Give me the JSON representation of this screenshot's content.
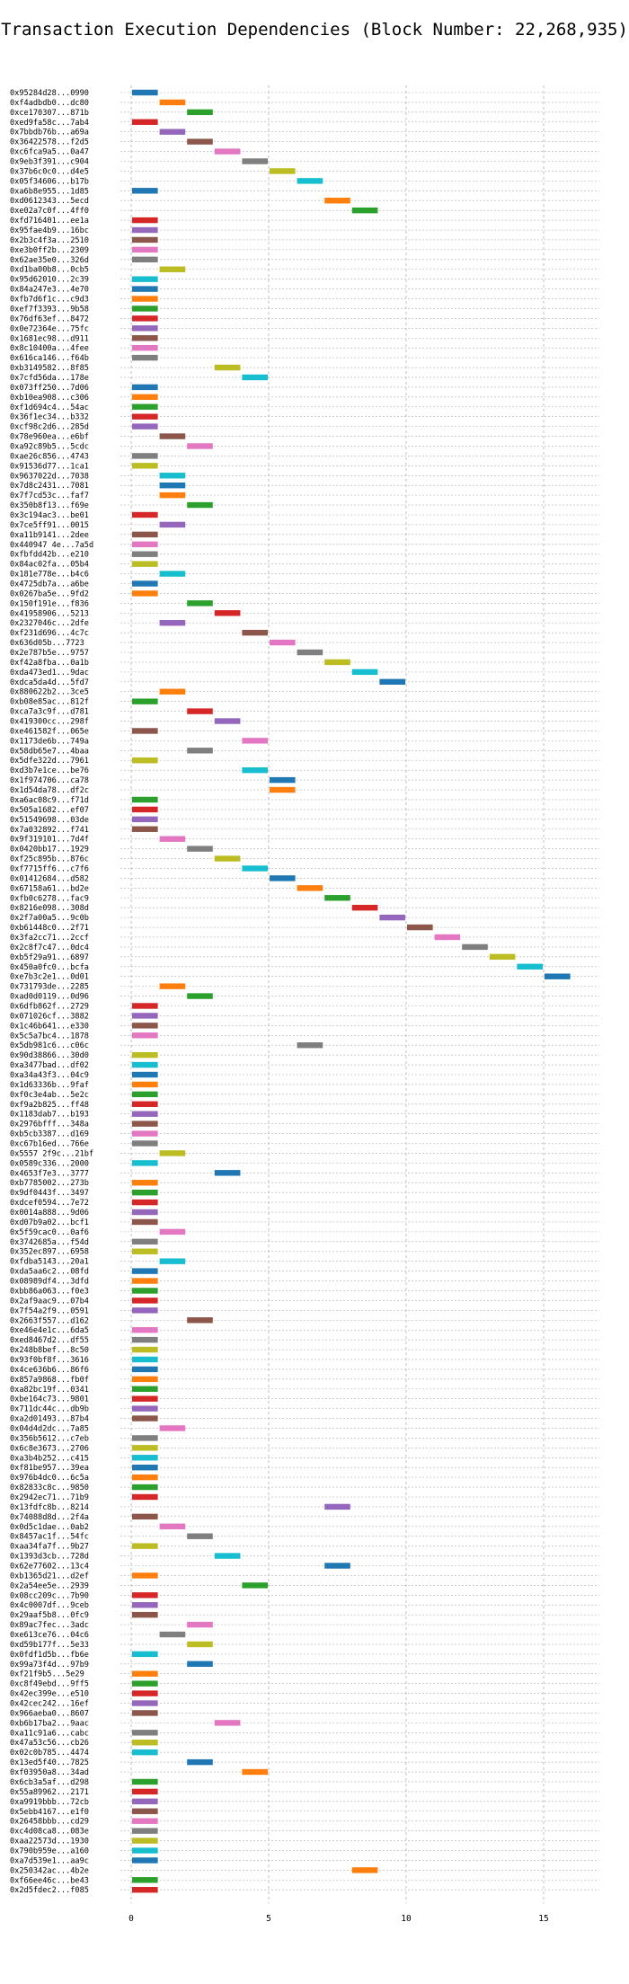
{
  "chart_data": {
    "type": "bar",
    "orientation": "horizontal-gantt",
    "title": "Transaction Execution Dependencies (Block Number: 22,268,935)",
    "xlabel": "",
    "ylabel": "",
    "xlim": [
      0,
      17
    ],
    "xticks": [
      0,
      5,
      10,
      15
    ],
    "grid": true,
    "legend": "none",
    "colors": [
      "#1f77b4",
      "#ff7f0e",
      "#2ca02c",
      "#d62728",
      "#9467bd",
      "#8c564b",
      "#e377c2",
      "#7f7f7f",
      "#bcbd22",
      "#17becf"
    ],
    "rows": [
      {
        "label": "0x95284d28...0990",
        "start": 0,
        "color": "#1f77b4"
      },
      {
        "label": "0xf4adbdb0...dc80",
        "start": 1,
        "color": "#ff7f0e"
      },
      {
        "label": "0xce170307...871b",
        "start": 2,
        "color": "#2ca02c"
      },
      {
        "label": "0xed9fa58c...7ab4",
        "start": 0,
        "color": "#d62728"
      },
      {
        "label": "0x7bbdb76b...a69a",
        "start": 1,
        "color": "#9467bd"
      },
      {
        "label": "0x36422578...f2d5",
        "start": 2,
        "color": "#8c564b"
      },
      {
        "label": "0xc6fca9a5...0a47",
        "start": 3,
        "color": "#e377c2"
      },
      {
        "label": "0x9eb3f391...c904",
        "start": 4,
        "color": "#7f7f7f"
      },
      {
        "label": "0x37b6c0c0...d4e5",
        "start": 5,
        "color": "#bcbd22"
      },
      {
        "label": "0x05f34606...b17b",
        "start": 6,
        "color": "#17becf"
      },
      {
        "label": "0xa6b8e955...1d85",
        "start": 0,
        "color": "#1f77b4"
      },
      {
        "label": "0xd0612343...5ecd",
        "start": 7,
        "color": "#ff7f0e"
      },
      {
        "label": "0xe02a7c0f...4ff0",
        "start": 8,
        "color": "#2ca02c"
      },
      {
        "label": "0xfd716401...ee1a",
        "start": 0,
        "color": "#d62728"
      },
      {
        "label": "0x95fae4b9...16bc",
        "start": 0,
        "color": "#9467bd"
      },
      {
        "label": "0x2b3c4f3a...2510",
        "start": 0,
        "color": "#8c564b"
      },
      {
        "label": "0xe3b0ff2b...2309",
        "start": 0,
        "color": "#e377c2"
      },
      {
        "label": "0x62ae35e0...326d",
        "start": 0,
        "color": "#7f7f7f"
      },
      {
        "label": "0xd1ba00b8...0cb5",
        "start": 1,
        "color": "#bcbd22"
      },
      {
        "label": "0x95d62010...2c39",
        "start": 0,
        "color": "#17becf"
      },
      {
        "label": "0x84a247e3...4e70",
        "start": 0,
        "color": "#1f77b4"
      },
      {
        "label": "0xfb7d6f1c...c9d3",
        "start": 0,
        "color": "#ff7f0e"
      },
      {
        "label": "0xef7f3393...9b58",
        "start": 0,
        "color": "#2ca02c"
      },
      {
        "label": "0x76df63ef...8472",
        "start": 0,
        "color": "#d62728"
      },
      {
        "label": "0x0e72364e...75fc",
        "start": 0,
        "color": "#9467bd"
      },
      {
        "label": "0x1681ec98...d911",
        "start": 0,
        "color": "#8c564b"
      },
      {
        "label": "0x8c10400a...4fee",
        "start": 0,
        "color": "#e377c2"
      },
      {
        "label": "0x616ca146...f64b",
        "start": 0,
        "color": "#7f7f7f"
      },
      {
        "label": "0xb3149582...8f85",
        "start": 3,
        "color": "#bcbd22"
      },
      {
        "label": "0x7cfd56da...178e",
        "start": 4,
        "color": "#17becf"
      },
      {
        "label": "0x073ff250...7d06",
        "start": 0,
        "color": "#1f77b4"
      },
      {
        "label": "0xb10ea908...c306",
        "start": 0,
        "color": "#ff7f0e"
      },
      {
        "label": "0xf1d694c4...54ac",
        "start": 0,
        "color": "#2ca02c"
      },
      {
        "label": "0x36f1ec34...b332",
        "start": 0,
        "color": "#d62728"
      },
      {
        "label": "0xcf98c2d6...285d",
        "start": 0,
        "color": "#9467bd"
      },
      {
        "label": "0x78e960ea...e6bf",
        "start": 1,
        "color": "#8c564b"
      },
      {
        "label": "0xa92c89b5...5cdc",
        "start": 2,
        "color": "#e377c2"
      },
      {
        "label": "0xae26c856...4743",
        "start": 0,
        "color": "#7f7f7f"
      },
      {
        "label": "0x91536d77...1ca1",
        "start": 0,
        "color": "#bcbd22"
      },
      {
        "label": "0x9637022d...7038",
        "start": 1,
        "color": "#17becf"
      },
      {
        "label": "0x7d8c2431...7081",
        "start": 1,
        "color": "#1f77b4"
      },
      {
        "label": "0x7f7cd53c...faf7",
        "start": 1,
        "color": "#ff7f0e"
      },
      {
        "label": "0x350b8f13...f69e",
        "start": 2,
        "color": "#2ca02c"
      },
      {
        "label": "0x3c194ac3...be01",
        "start": 0,
        "color": "#d62728"
      },
      {
        "label": "0x7ce5ff91...0015",
        "start": 1,
        "color": "#9467bd"
      },
      {
        "label": "0xa11b9141...2dee",
        "start": 0,
        "color": "#8c564b"
      },
      {
        "label": "0x440947 4e...7a5d",
        "start": 0,
        "color": "#e377c2"
      },
      {
        "label": "0xfbfdd42b...e210",
        "start": 0,
        "color": "#7f7f7f"
      },
      {
        "label": "0x84ac02fa...05b4",
        "start": 0,
        "color": "#bcbd22"
      },
      {
        "label": "0x181e778e...b4c6",
        "start": 1,
        "color": "#17becf"
      },
      {
        "label": "0x4725db7a...a6be",
        "start": 0,
        "color": "#1f77b4"
      },
      {
        "label": "0x0267ba5e...9fd2",
        "start": 0,
        "color": "#ff7f0e"
      },
      {
        "label": "0x150f191e...f836",
        "start": 2,
        "color": "#2ca02c"
      },
      {
        "label": "0x41958906...5213",
        "start": 3,
        "color": "#d62728"
      },
      {
        "label": "0x2327046c...2dfe",
        "start": 1,
        "color": "#9467bd"
      },
      {
        "label": "0xf231d696...4c7c",
        "start": 4,
        "color": "#8c564b"
      },
      {
        "label": "0x636d05b...7723",
        "start": 5,
        "color": "#e377c2"
      },
      {
        "label": "0x2e787b5e...9757",
        "start": 6,
        "color": "#7f7f7f"
      },
      {
        "label": "0xf42a8fba...0a1b",
        "start": 7,
        "color": "#bcbd22"
      },
      {
        "label": "0xda473ed1...9dac",
        "start": 8,
        "color": "#17becf"
      },
      {
        "label": "0xdca5da4d...5fd7",
        "start": 9,
        "color": "#1f77b4"
      },
      {
        "label": "0x880622b2...3ce5",
        "start": 1,
        "color": "#ff7f0e"
      },
      {
        "label": "0xb08e85ac...812f",
        "start": 0,
        "color": "#2ca02c"
      },
      {
        "label": "0xca7a3c9f...d781",
        "start": 2,
        "color": "#d62728"
      },
      {
        "label": "0x419300cc...298f",
        "start": 3,
        "color": "#9467bd"
      },
      {
        "label": "0xe461582f...065e",
        "start": 0,
        "color": "#8c564b"
      },
      {
        "label": "0x1173de6b...749a",
        "start": 4,
        "color": "#e377c2"
      },
      {
        "label": "0x58db65e7...4baa",
        "start": 2,
        "color": "#7f7f7f"
      },
      {
        "label": "0x5dfe322d...7961",
        "start": 0,
        "color": "#bcbd22"
      },
      {
        "label": "0xd3b7e1ce...be76",
        "start": 4,
        "color": "#17becf"
      },
      {
        "label": "0x1f974706...ca78",
        "start": 5,
        "color": "#1f77b4"
      },
      {
        "label": "0x1d54da78...df2c",
        "start": 5,
        "color": "#ff7f0e"
      },
      {
        "label": "0xa6ac08c9...f71d",
        "start": 0,
        "color": "#2ca02c"
      },
      {
        "label": "0x505a1682...ef07",
        "start": 0,
        "color": "#d62728"
      },
      {
        "label": "0x51549698...03de",
        "start": 0,
        "color": "#9467bd"
      },
      {
        "label": "0x7a032892...f741",
        "start": 0,
        "color": "#8c564b"
      },
      {
        "label": "0x9f319101...7d4f",
        "start": 1,
        "color": "#e377c2"
      },
      {
        "label": "0x0420bb17...1929",
        "start": 2,
        "color": "#7f7f7f"
      },
      {
        "label": "0xf25c895b...876c",
        "start": 3,
        "color": "#bcbd22"
      },
      {
        "label": "0xf7715ff6...c7f6",
        "start": 4,
        "color": "#17becf"
      },
      {
        "label": "0x01412684...d582",
        "start": 5,
        "color": "#1f77b4"
      },
      {
        "label": "0x67158a61...bd2e",
        "start": 6,
        "color": "#ff7f0e"
      },
      {
        "label": "0xfb0c6278...fac9",
        "start": 7,
        "color": "#2ca02c"
      },
      {
        "label": "0x8216e098...308d",
        "start": 8,
        "color": "#d62728"
      },
      {
        "label": "0x2f7a00a5...9c0b",
        "start": 9,
        "color": "#9467bd"
      },
      {
        "label": "0xb61448c0...2f71",
        "start": 10,
        "color": "#8c564b"
      },
      {
        "label": "0x3fa2cc71...2ccf",
        "start": 11,
        "color": "#e377c2"
      },
      {
        "label": "0x2c8f7c47...0dc4",
        "start": 12,
        "color": "#7f7f7f"
      },
      {
        "label": "0xb5f29a91...6897",
        "start": 13,
        "color": "#bcbd22"
      },
      {
        "label": "0x450a0fc0...bcfa",
        "start": 14,
        "color": "#17becf"
      },
      {
        "label": "0xe7b3c2e1...0d01",
        "start": 15,
        "color": "#1f77b4"
      },
      {
        "label": "0x731793de...2285",
        "start": 1,
        "color": "#ff7f0e"
      },
      {
        "label": "0xad0d0119...0d96",
        "start": 2,
        "color": "#2ca02c"
      },
      {
        "label": "0x6dfb862f...2729",
        "start": 0,
        "color": "#d62728"
      },
      {
        "label": "0x071026cf...3882",
        "start": 0,
        "color": "#9467bd"
      },
      {
        "label": "0x1c46b641...e330",
        "start": 0,
        "color": "#8c564b"
      },
      {
        "label": "0x5c5a7bc4...1878",
        "start": 0,
        "color": "#e377c2"
      },
      {
        "label": "0x5db981c6...c06c",
        "start": 6,
        "color": "#7f7f7f"
      },
      {
        "label": "0x90d38866...30d0",
        "start": 0,
        "color": "#bcbd22"
      },
      {
        "label": "0xa3477bad...df02",
        "start": 0,
        "color": "#17becf"
      },
      {
        "label": "0xa34a43f3...04c9",
        "start": 0,
        "color": "#1f77b4"
      },
      {
        "label": "0x1d63336b...9faf",
        "start": 0,
        "color": "#ff7f0e"
      },
      {
        "label": "0xf0c3e4ab...5e2c",
        "start": 0,
        "color": "#2ca02c"
      },
      {
        "label": "0xf9a2b825...ff48",
        "start": 0,
        "color": "#d62728"
      },
      {
        "label": "0x1183dab7...b193",
        "start": 0,
        "color": "#9467bd"
      },
      {
        "label": "0x2976bfff...348a",
        "start": 0,
        "color": "#8c564b"
      },
      {
        "label": "0xb5cb3387...d169",
        "start": 0,
        "color": "#e377c2"
      },
      {
        "label": "0xc67b16ed...766e",
        "start": 0,
        "color": "#7f7f7f"
      },
      {
        "label": "0x5557 2f9c...21bf",
        "start": 1,
        "color": "#bcbd22"
      },
      {
        "label": "0x0589c336...2000",
        "start": 0,
        "color": "#17becf"
      },
      {
        "label": "0x4653f7e3...3777",
        "start": 3,
        "color": "#1f77b4"
      },
      {
        "label": "0xb7785002...273b",
        "start": 0,
        "color": "#ff7f0e"
      },
      {
        "label": "0x9df0443f...3497",
        "start": 0,
        "color": "#2ca02c"
      },
      {
        "label": "0xdcef0594...7e72",
        "start": 0,
        "color": "#d62728"
      },
      {
        "label": "0x0014a888...9d06",
        "start": 0,
        "color": "#9467bd"
      },
      {
        "label": "0xd07b9a02...bcf1",
        "start": 0,
        "color": "#8c564b"
      },
      {
        "label": "0x5f59cac0...0af6",
        "start": 1,
        "color": "#e377c2"
      },
      {
        "label": "0x3742685a...f54d",
        "start": 0,
        "color": "#7f7f7f"
      },
      {
        "label": "0x352ec897...6958",
        "start": 0,
        "color": "#bcbd22"
      },
      {
        "label": "0xfdba5143...20a1",
        "start": 1,
        "color": "#17becf"
      },
      {
        "label": "0xda5aa6c2...08fd",
        "start": 0,
        "color": "#1f77b4"
      },
      {
        "label": "0x08989df4...3dfd",
        "start": 0,
        "color": "#ff7f0e"
      },
      {
        "label": "0xbb86a063...f0e3",
        "start": 0,
        "color": "#2ca02c"
      },
      {
        "label": "0x2af9aac9...07b4",
        "start": 0,
        "color": "#d62728"
      },
      {
        "label": "0x7f54a2f9...0591",
        "start": 0,
        "color": "#9467bd"
      },
      {
        "label": "0x2663f557...d162",
        "start": 2,
        "color": "#8c564b"
      },
      {
        "label": "0xe46e4e1c...6da5",
        "start": 0,
        "color": "#e377c2"
      },
      {
        "label": "0xed8467d2...df55",
        "start": 0,
        "color": "#7f7f7f"
      },
      {
        "label": "0x248b8bef...8c50",
        "start": 0,
        "color": "#bcbd22"
      },
      {
        "label": "0x93f0bf8f...3616",
        "start": 0,
        "color": "#17becf"
      },
      {
        "label": "0x4ce636b6...86f6",
        "start": 0,
        "color": "#1f77b4"
      },
      {
        "label": "0x857a9868...fb0f",
        "start": 0,
        "color": "#ff7f0e"
      },
      {
        "label": "0xa82bc19f...0341",
        "start": 0,
        "color": "#2ca02c"
      },
      {
        "label": "0xbe164c73...9801",
        "start": 0,
        "color": "#d62728"
      },
      {
        "label": "0x711dc44c...db9b",
        "start": 0,
        "color": "#9467bd"
      },
      {
        "label": "0xa2d01493...87b4",
        "start": 0,
        "color": "#8c564b"
      },
      {
        "label": "0x04d4d2dc...7a85",
        "start": 1,
        "color": "#e377c2"
      },
      {
        "label": "0x356b5612...c7eb",
        "start": 0,
        "color": "#7f7f7f"
      },
      {
        "label": "0x6c8e3673...2706",
        "start": 0,
        "color": "#bcbd22"
      },
      {
        "label": "0xa3b4b252...c415",
        "start": 0,
        "color": "#17becf"
      },
      {
        "label": "0xf81be957...39ea",
        "start": 0,
        "color": "#1f77b4"
      },
      {
        "label": "0x976b4dc0...6c5a",
        "start": 0,
        "color": "#ff7f0e"
      },
      {
        "label": "0x82833c8c...9850",
        "start": 0,
        "color": "#2ca02c"
      },
      {
        "label": "0x2942ec71...71b9",
        "start": 0,
        "color": "#d62728"
      },
      {
        "label": "0x13fdfc8b...8214",
        "start": 7,
        "color": "#9467bd"
      },
      {
        "label": "0x74088d8d...2f4a",
        "start": 0,
        "color": "#8c564b"
      },
      {
        "label": "0x0d5c1dae...0ab2",
        "start": 1,
        "color": "#e377c2"
      },
      {
        "label": "0x8457ac1f...54fc",
        "start": 2,
        "color": "#7f7f7f"
      },
      {
        "label": "0xaa34fa7f...9b27",
        "start": 0,
        "color": "#bcbd22"
      },
      {
        "label": "0x1393d3cb...728d",
        "start": 3,
        "color": "#17becf"
      },
      {
        "label": "0x62e77602...13c4",
        "start": 7,
        "color": "#1f77b4"
      },
      {
        "label": "0xb1365d21...d2ef",
        "start": 0,
        "color": "#ff7f0e"
      },
      {
        "label": "0x2a54ee5e...2939",
        "start": 4,
        "color": "#2ca02c"
      },
      {
        "label": "0x08cc209c...7b90",
        "start": 0,
        "color": "#d62728"
      },
      {
        "label": "0x4c0007df...9ceb",
        "start": 0,
        "color": "#9467bd"
      },
      {
        "label": "0x29aaf5b8...0fc9",
        "start": 0,
        "color": "#8c564b"
      },
      {
        "label": "0x89ac7fec...3adc",
        "start": 2,
        "color": "#e377c2"
      },
      {
        "label": "0xe613ce76...04c6",
        "start": 1,
        "color": "#7f7f7f"
      },
      {
        "label": "0xd59b177f...5e33",
        "start": 2,
        "color": "#bcbd22"
      },
      {
        "label": "0x0fdf1d5b...fb6e",
        "start": 0,
        "color": "#17becf"
      },
      {
        "label": "0x99a73f4d...97b9",
        "start": 2,
        "color": "#1f77b4"
      },
      {
        "label": "0xf21f9b5...5e29",
        "start": 0,
        "color": "#ff7f0e"
      },
      {
        "label": "0xc8f49ebd...9ff5",
        "start": 0,
        "color": "#2ca02c"
      },
      {
        "label": "0x42ec399e...e510",
        "start": 0,
        "color": "#d62728"
      },
      {
        "label": "0x42cec242...16ef",
        "start": 0,
        "color": "#9467bd"
      },
      {
        "label": "0x966aeba0...8607",
        "start": 0,
        "color": "#8c564b"
      },
      {
        "label": "0xb6b17ba2...9aac",
        "start": 3,
        "color": "#e377c2"
      },
      {
        "label": "0xa11c91a6...cabc",
        "start": 0,
        "color": "#7f7f7f"
      },
      {
        "label": "0x47a53c56...cb26",
        "start": 0,
        "color": "#bcbd22"
      },
      {
        "label": "0x02c0b785...4474",
        "start": 0,
        "color": "#17becf"
      },
      {
        "label": "0x13ed5f40...7825",
        "start": 2,
        "color": "#1f77b4"
      },
      {
        "label": "0xf03950a8...34ad",
        "start": 4,
        "color": "#ff7f0e"
      },
      {
        "label": "0x6cb3a5af...d298",
        "start": 0,
        "color": "#2ca02c"
      },
      {
        "label": "0x55a89962...2171",
        "start": 0,
        "color": "#d62728"
      },
      {
        "label": "0xa9919bbb...72cb",
        "start": 0,
        "color": "#9467bd"
      },
      {
        "label": "0x5ebb4167...e1f0",
        "start": 0,
        "color": "#8c564b"
      },
      {
        "label": "0x26458bbb...cd29",
        "start": 0,
        "color": "#e377c2"
      },
      {
        "label": "0xc4d08ca8...083e",
        "start": 0,
        "color": "#7f7f7f"
      },
      {
        "label": "0xaa22573d...1930",
        "start": 0,
        "color": "#bcbd22"
      },
      {
        "label": "0x790b959e...a160",
        "start": 0,
        "color": "#17becf"
      },
      {
        "label": "0xa7d539e1...aa9c",
        "start": 0,
        "color": "#1f77b4"
      },
      {
        "label": "0x250342ac...4b2e",
        "start": 8,
        "color": "#ff7f0e"
      },
      {
        "label": "0xf66ee46c...be43",
        "start": 0,
        "color": "#2ca02c"
      },
      {
        "label": "0x2d5fdec2...f085",
        "start": 0,
        "color": "#d62728"
      }
    ]
  }
}
